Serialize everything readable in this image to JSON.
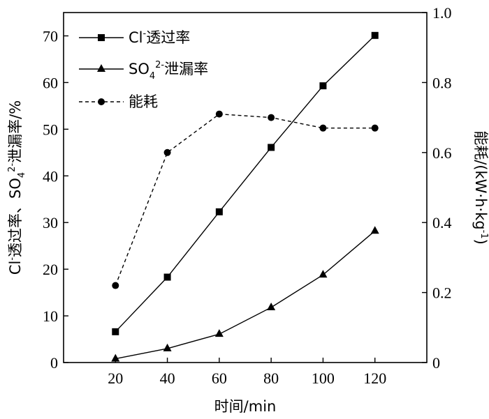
{
  "chart_data": {
    "type": "line",
    "x": [
      20,
      40,
      60,
      80,
      100,
      120
    ],
    "xlabel": "时间/min",
    "xlim": [
      0,
      140
    ],
    "xticks": [
      20,
      40,
      60,
      80,
      100,
      120
    ],
    "ylabel_left": {
      "a": "Cl",
      "b": "-",
      "c": "透过率、SO",
      "d": "4",
      "e": "2-",
      "f": "泄漏率/%"
    },
    "ylim_left": [
      0,
      75
    ],
    "yticks_left": [
      0,
      10,
      20,
      30,
      40,
      50,
      60,
      70
    ],
    "ylabel_right": {
      "a": "能耗/(kW·h·kg",
      "b": "-1",
      "c": ")"
    },
    "ylim_right": [
      0,
      1.0
    ],
    "yticks_right": [
      "0",
      "0.2",
      "0.4",
      "0.6",
      "0.8",
      "1.0"
    ],
    "grid": false,
    "legend_position": "top-left",
    "series": [
      {
        "key": "cl",
        "legend": {
          "a": "Cl",
          "b": "-",
          "c": "透过率"
        },
        "axis": "left",
        "marker": "square",
        "dash": "solid",
        "color": "#000000",
        "values": [
          6.6,
          18.3,
          32.3,
          46.1,
          59.3,
          70.1
        ]
      },
      {
        "key": "so4",
        "legend": {
          "a": "SO",
          "b": "4",
          "c": "2-",
          "d": "泄漏率"
        },
        "axis": "left",
        "marker": "triangle",
        "dash": "solid",
        "color": "#000000",
        "values": [
          0.8,
          3.0,
          6.1,
          11.8,
          18.8,
          28.2
        ]
      },
      {
        "key": "energy",
        "legend": {
          "a": "能耗"
        },
        "axis": "right",
        "marker": "circle",
        "dash": "dashed",
        "color": "#000000",
        "values": [
          0.22,
          0.6,
          0.71,
          0.7,
          0.67,
          0.67
        ]
      }
    ]
  }
}
